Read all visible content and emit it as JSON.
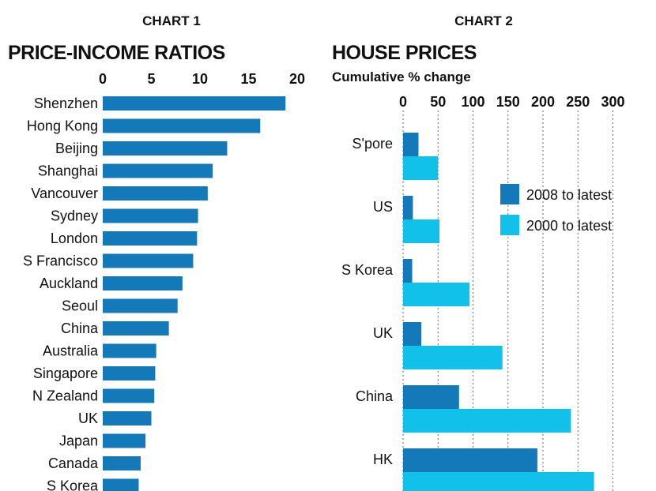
{
  "chart_data": [
    {
      "type": "bar",
      "orientation": "horizontal",
      "kicker": "CHART 1",
      "title": "PRICE-INCOME RATIOS",
      "categories": [
        "Shenzhen",
        "Hong Kong",
        "Beijing",
        "Shanghai",
        "Vancouver",
        "Sydney",
        "London",
        "S Francisco",
        "Auckland",
        "Seoul",
        "China",
        "Australia",
        "Singapore",
        "N Zealand",
        "UK",
        "Japan",
        "Canada",
        "S Korea"
      ],
      "values": [
        18.8,
        16.2,
        12.8,
        11.3,
        10.8,
        9.8,
        9.7,
        9.3,
        8.2,
        7.7,
        6.8,
        5.5,
        5.4,
        5.3,
        5.0,
        4.4,
        3.9,
        3.7
      ],
      "xticks": [
        0,
        5,
        10,
        15,
        20
      ],
      "xlim": [
        0,
        20
      ],
      "grid": false,
      "colors": {
        "bar": "#1479b8"
      }
    },
    {
      "type": "bar",
      "orientation": "horizontal",
      "kicker": "CHART 2",
      "title": "HOUSE PRICES",
      "subtitle": "Cumulative % change",
      "categories": [
        "S'pore",
        "US",
        "S Korea",
        "UK",
        "China",
        "HK"
      ],
      "series": [
        {
          "name": "2008 to latest",
          "values": [
            22,
            14,
            13,
            26,
            80,
            192
          ],
          "color": "#1479b8"
        },
        {
          "name": "2000 to latest",
          "values": [
            50,
            52,
            95,
            142,
            240,
            273
          ],
          "color": "#12c1ea"
        }
      ],
      "xticks": [
        0,
        50,
        100,
        150,
        200,
        250,
        300
      ],
      "xlim": [
        0,
        300
      ],
      "grid": true,
      "legend_position": "right"
    }
  ]
}
